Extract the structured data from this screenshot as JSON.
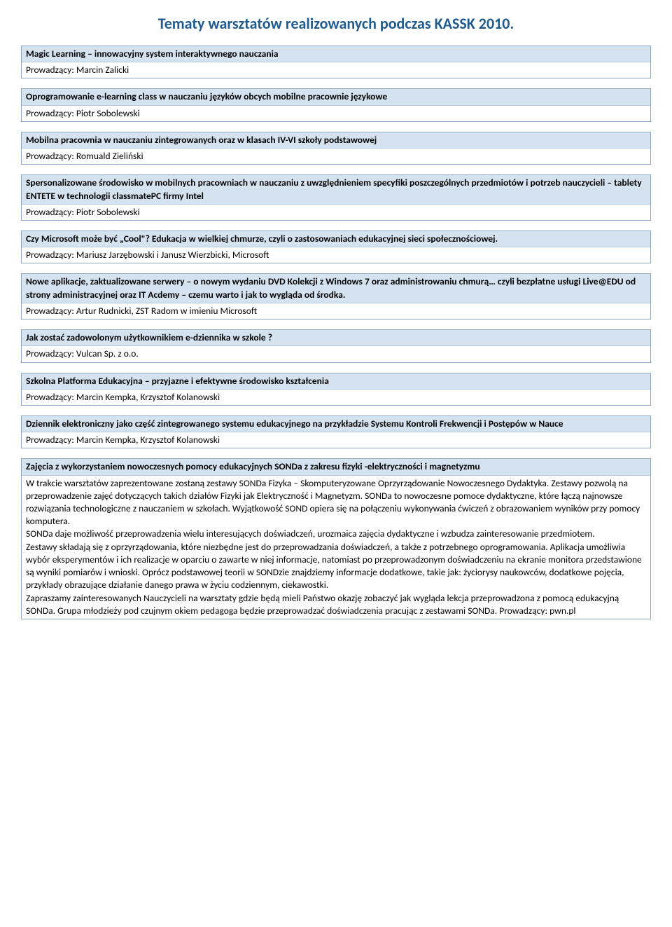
{
  "pageTitle": "Tematy warsztatów realizowanych podczas KASSK 2010.",
  "blocks": [
    {
      "headerBold": "Magic Learning – innowacyjny system interaktywnego nauczania",
      "bodyLines": [
        "Prowadzący: Marcin Zalicki"
      ]
    },
    {
      "headerBold": "Oprogramowanie e-learning class w nauczaniu języków obcych mobilne pracownie językowe",
      "bodyLines": [
        "Prowadzący: Piotr Sobolewski"
      ]
    },
    {
      "headerBold": "Mobilna pracownia w nauczaniu zintegrowanych oraz w klasach IV-VI szkoły podstawowej",
      "bodyLines": [
        "Prowadzący: Romuald Zieliński"
      ]
    },
    {
      "headerBold": "Spersonalizowane środowisko w mobilnych pracowniach w nauczaniu z uwzględnieniem specyfiki poszczególnych przedmiotów i potrzeb nauczycieli – tablety ENTETE w technologii classmatePC firmy Intel",
      "bodyLines": [
        "Prowadzący: Piotr Sobolewski"
      ]
    },
    {
      "headerBold": "Czy Microsoft może być „Cool\"? Edukacja w wielkiej chmurze, czyli o zastosowaniach edukacyjnej sieci społecznościowej.",
      "bodyLines": [
        " Prowadzący: Mariusz Jarzębowski i Janusz Wierzbicki, Microsoft"
      ]
    },
    {
      "headerBold": "Nowe aplikacje, zaktualizowane serwery – o nowym wydaniu DVD Kolekcji z Windows 7 oraz administrowaniu chmurą… czyli bezpłatne usługi Live@EDU od strony administracyjnej oraz IT Acdemy – czemu warto i jak to wygląda od środka.",
      "bodyLines": [
        "Prowadzący:  Artur Rudnicki, ZST Radom w imieniu Microsoft"
      ]
    },
    {
      "headerBold": "Jak zostać zadowolonym użytkownikiem e-dziennika w szkole ?",
      "bodyLines": [
        "Prowadzący:  Vulcan Sp. z o.o."
      ]
    },
    {
      "headerBold": "Szkolna Platforma Edukacyjna – przyjazne i efektywne środowisko kształcenia",
      "bodyLines": [
        "Prowadzący:  Marcin Kempka, Krzysztof Kolanowski"
      ]
    },
    {
      "headerBold": "Dziennik elektroniczny jako część zintegrowanego systemu edukacyjnego na przykładzie Systemu Kontroli Frekwencji i Postępów w Nauce",
      "bodyLines": [
        "Prowadzący:  Marcin Kempka, Krzysztof Kolanowski"
      ]
    },
    {
      "headerBold": "Zajęcia z wykorzystaniem nowoczesnych pomocy edukacyjnych SONDa  z zakresu fizyki -elektryczności i magnetyzmu",
      "bodyLines": [
        "W trakcie warsztatów zaprezentowane zostaną zestawy SONDa Fizyka – Skomputeryzowane Oprzyrządowanie Nowoczesnego Dydaktyka. Zestawy pozwolą na przeprowadzenie zajęć dotyczących takich  działów Fizyki jak Elektryczność i Magnetyzm. SONDa to nowoczesne pomoce dydaktyczne, które łączą najnowsze rozwiązania technologiczne z nauczaniem w szkołach.  Wyjątkowość SOND opiera się na połączeniu wykonywania ćwiczeń z obrazowaniem wyników przy pomocy komputera.",
        "SONDa daje możliwość przeprowadzenia wielu interesujących doświadczeń, urozmaica zajęcia dydaktyczne i wzbudza zainteresowanie przedmiotem.",
        "Zestawy składają się z oprzyrządowania, które niezbędne jest do przeprowadzania doświadczeń, a także z potrzebnego oprogramowania.  Aplikacja umożliwia wybór eksperymentów i  ich realizacje w oparciu o zawarte w niej informacje, natomiast  po przeprowadzonym doświadczeniu na ekranie monitora przedstawione są wyniki pomiarów i wnioski. Oprócz podstawowej teorii w SONDzie znajdziemy  informacje dodatkowe, takie jak: życiorysy naukowców, dodatkowe pojęcia, przykłady obrazujące działanie danego prawa w życiu codziennym, ciekawostki.",
        "Zapraszamy zainteresowanych Nauczycieli na warsztaty gdzie będą mieli Państwo okazję zobaczyć jak wygląda lekcja przeprowadzona z pomocą edukacyjną SONDa. Grupa młodzieży pod czujnym okiem pedagoga będzie przeprowadzać doświadczenia pracując z zestawami SONDa. Prowadzący:  pwn.pl"
      ]
    }
  ]
}
